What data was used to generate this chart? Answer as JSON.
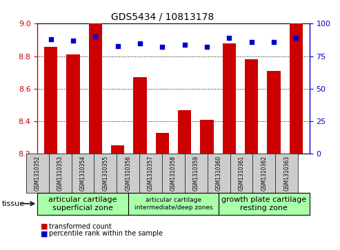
{
  "title": "GDS5434 / 10813178",
  "samples": [
    "GSM1310352",
    "GSM1310353",
    "GSM1310354",
    "GSM1310355",
    "GSM1310356",
    "GSM1310357",
    "GSM1310358",
    "GSM1310359",
    "GSM1310360",
    "GSM1310361",
    "GSM1310362",
    "GSM1310363"
  ],
  "bar_values": [
    8.86,
    8.81,
    9.0,
    8.25,
    8.67,
    8.33,
    8.47,
    8.41,
    8.88,
    8.78,
    8.71,
    9.0
  ],
  "percentile_values": [
    88,
    87,
    90,
    83,
    85,
    82,
    84,
    82,
    89,
    86,
    86,
    89
  ],
  "bar_bottom": 8.2,
  "ylim_left": [
    8.2,
    9.0
  ],
  "ylim_right": [
    0,
    100
  ],
  "yticks_left": [
    8.2,
    8.4,
    8.6,
    8.8,
    9.0
  ],
  "yticks_right": [
    0,
    25,
    50,
    75,
    100
  ],
  "bar_color": "#cc0000",
  "percentile_color": "#0000cc",
  "tissue_groups": [
    {
      "label": "articular cartilage\nsuperficial zone",
      "start": 0,
      "end": 4,
      "color": "#aaffaa",
      "fontsize": 8
    },
    {
      "label": "articular cartilage\nintermediate/deep zones",
      "start": 4,
      "end": 8,
      "color": "#aaffaa",
      "fontsize": 6.5
    },
    {
      "label": "growth plate cartilage\nresting zone",
      "start": 8,
      "end": 12,
      "color": "#aaffaa",
      "fontsize": 8
    }
  ],
  "tissue_label": "tissue",
  "legend_bar_label": "transformed count",
  "legend_pct_label": "percentile rank within the sample",
  "left_axis_color": "#cc0000",
  "right_axis_color": "#0000cc",
  "tick_bg_color": "#cccccc",
  "dotted_grid_values": [
    8.4,
    8.6,
    8.8
  ]
}
